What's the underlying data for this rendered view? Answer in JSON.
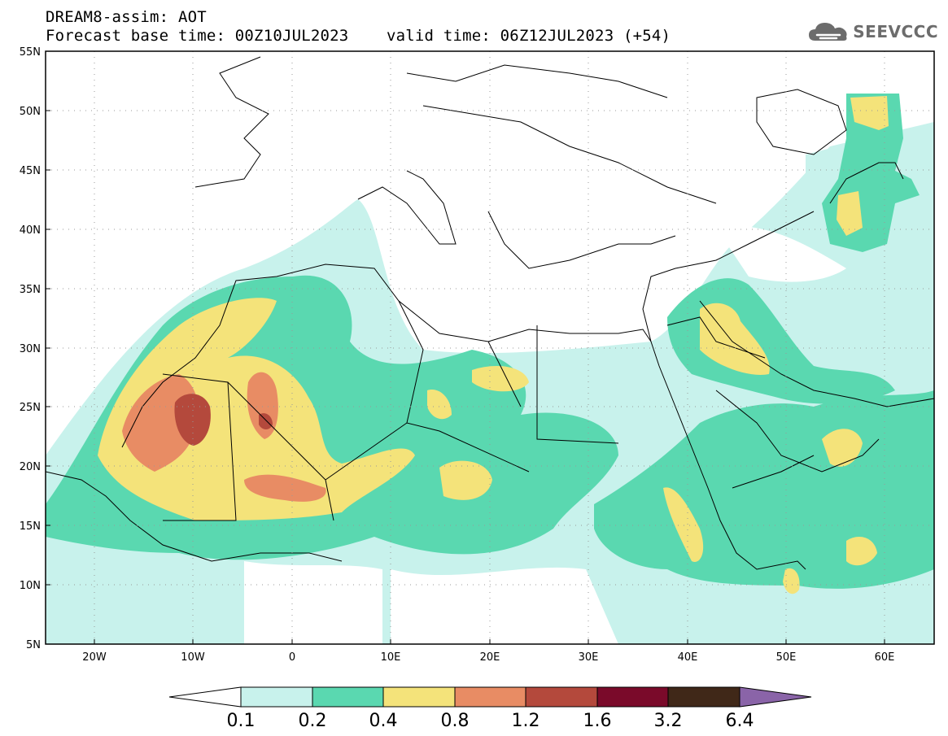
{
  "header": {
    "line1": "DREAM8-assim: AOT",
    "line2": "Forecast base time: 00Z10JUL2023    valid time: 06Z12JUL2023 (+54)"
  },
  "logo": {
    "text": "SEEVCCC",
    "icon": "cloud-icon"
  },
  "map": {
    "lon_range": [
      -25,
      65
    ],
    "lat_range": [
      5,
      55
    ],
    "lat_ticks": [
      "5N",
      "10N",
      "15N",
      "20N",
      "25N",
      "30N",
      "35N",
      "40N",
      "45N",
      "50N",
      "55N"
    ],
    "lon_ticks": [
      "20W",
      "10W",
      "0",
      "10E",
      "20E",
      "30E",
      "40E",
      "50E",
      "60E"
    ]
  },
  "colorbar": {
    "labels": [
      "0.1",
      "0.2",
      "0.4",
      "0.8",
      "1.2",
      "1.6",
      "3.2",
      "6.4"
    ],
    "colors": [
      "#ffffff",
      "#c8f2ec",
      "#5ad8b0",
      "#f4e37a",
      "#e88c64",
      "#b4493c",
      "#7a0a2a",
      "#402818",
      "#8a64a8"
    ]
  }
}
